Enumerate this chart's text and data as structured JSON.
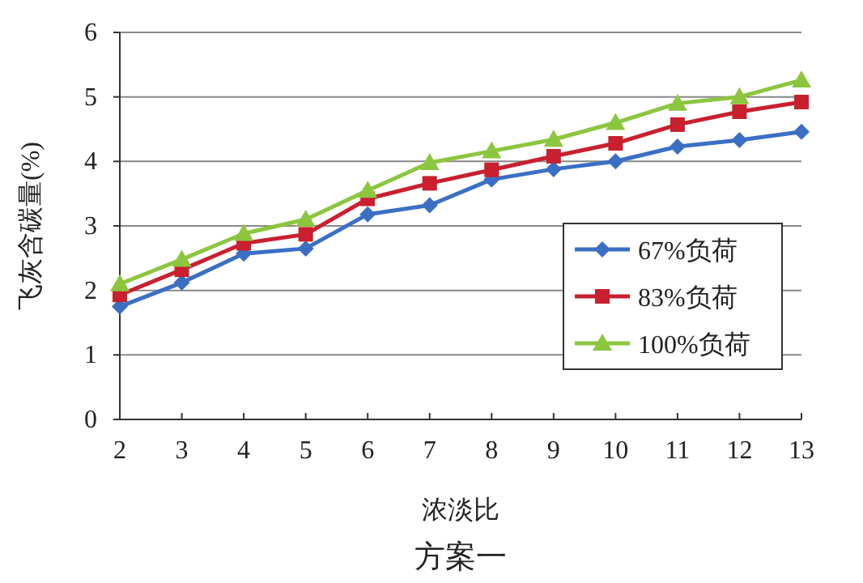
{
  "chart_data": {
    "type": "line",
    "title": "方案一",
    "xlabel": "浓淡比",
    "ylabel": "飞灰含碳量(%)",
    "x": [
      2,
      3,
      4,
      5,
      6,
      7,
      8,
      9,
      10,
      11,
      12,
      13
    ],
    "xlim": [
      2,
      13
    ],
    "xticks": [
      2,
      3,
      4,
      5,
      6,
      7,
      8,
      9,
      10,
      11,
      12,
      13
    ],
    "ylim": [
      0,
      6
    ],
    "yticks": [
      0,
      1,
      2,
      3,
      4,
      5,
      6
    ],
    "grid": "y",
    "legend": "bottom right",
    "series": [
      {
        "name": "67%负荷",
        "color": "#3b6fc4",
        "marker": "diamond",
        "values": [
          1.75,
          2.12,
          2.57,
          2.65,
          3.18,
          3.32,
          3.72,
          3.88,
          4.0,
          4.23,
          4.33,
          4.46
        ]
      },
      {
        "name": "83%负荷",
        "color": "#c8202f",
        "marker": "square",
        "values": [
          1.93,
          2.32,
          2.73,
          2.87,
          3.42,
          3.66,
          3.87,
          4.08,
          4.28,
          4.57,
          4.77,
          4.92
        ]
      },
      {
        "name": "100%负荷",
        "color": "#8cc63f",
        "marker": "triangle",
        "values": [
          2.1,
          2.48,
          2.88,
          3.1,
          3.55,
          3.98,
          4.16,
          4.34,
          4.6,
          4.9,
          5.0,
          5.26
        ]
      }
    ]
  }
}
